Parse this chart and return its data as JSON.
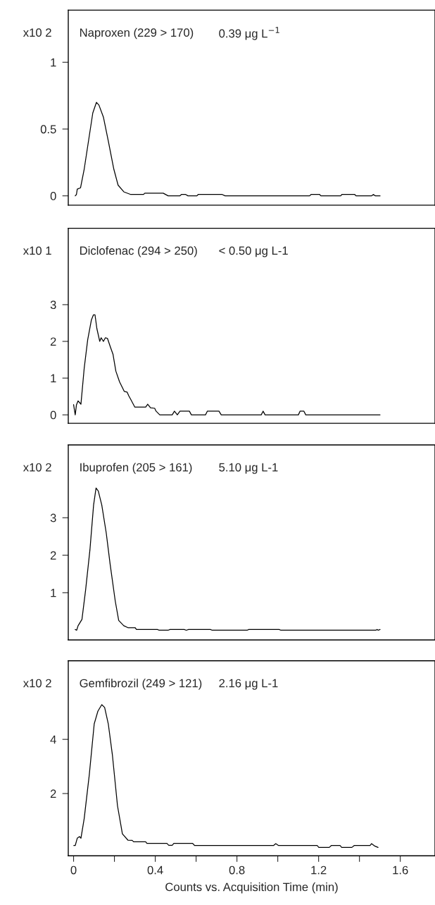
{
  "chart_data": [
    {
      "type": "line",
      "title": "Naproxen (229 > 170)",
      "subtitle": "0.39 μg L$^{−1}$",
      "ylabel": "x10 2",
      "xlim": [
        -0.026,
        1.77
      ],
      "ylim": [
        -0.07,
        1.39
      ],
      "yticks": [
        0,
        0.5,
        1
      ],
      "tick_labels": "y",
      "series": [
        {
          "color": "#000000",
          "x": [
            0.008,
            0.014,
            0.018,
            0.034,
            0.052,
            0.073,
            0.094,
            0.112,
            0.124,
            0.146,
            0.17,
            0.197,
            0.218,
            0.246,
            0.28,
            0.342,
            0.349,
            0.439,
            0.463,
            0.52,
            0.528,
            0.549,
            0.56,
            0.604,
            0.61,
            0.666,
            0.728,
            0.742,
            1.156,
            1.163,
            1.205,
            1.211,
            1.308,
            1.314,
            1.377,
            1.383,
            1.459,
            1.468,
            1.478,
            1.501
          ],
          "values": [
            0,
            0.01,
            0.05,
            0.06,
            0.2,
            0.41,
            0.62,
            0.7,
            0.68,
            0.59,
            0.41,
            0.2,
            0.08,
            0.03,
            0.01,
            0.01,
            0.02,
            0.02,
            0,
            0,
            0.01,
            0.01,
            0,
            0,
            0.01,
            0.01,
            0.01,
            0,
            0,
            0.01,
            0.01,
            0,
            0,
            0.01,
            0.01,
            0,
            0,
            0.01,
            0,
            0
          ]
        }
      ]
    },
    {
      "type": "line",
      "title": "Diclofenac (294 > 250)",
      "subtitle": "< 0.50 μg L-1",
      "ylabel": "x10 1",
      "xlim": [
        -0.026,
        1.77
      ],
      "ylim": [
        -0.23,
        5.08
      ],
      "yticks": [
        0,
        1,
        2,
        3
      ],
      "tick_labels": "y",
      "series": [
        {
          "color": "#000000",
          "x": [
            0,
            0.008,
            0.014,
            0.022,
            0.036,
            0.052,
            0.069,
            0.087,
            0.097,
            0.105,
            0.114,
            0.128,
            0.135,
            0.146,
            0.156,
            0.166,
            0.18,
            0.193,
            0.207,
            0.225,
            0.248,
            0.262,
            0.27,
            0.28,
            0.3,
            0.353,
            0.363,
            0.377,
            0.397,
            0.404,
            0.422,
            0.483,
            0.494,
            0.508,
            0.521,
            0.567,
            0.577,
            0.646,
            0.655,
            0.712,
            0.723,
            0.919,
            0.928,
            0.938,
            1.101,
            1.109,
            1.128,
            1.137,
            1.501
          ],
          "values": [
            0.28,
            0,
            0.27,
            0.38,
            0.29,
            1.27,
            2.04,
            2.58,
            2.72,
            2.72,
            2.35,
            2.0,
            2.1,
            2.0,
            2.1,
            2.08,
            1.85,
            1.65,
            1.19,
            0.9,
            0.64,
            0.62,
            0.52,
            0.42,
            0.21,
            0.21,
            0.29,
            0.19,
            0.18,
            0.1,
            0,
            0,
            0.1,
            0,
            0.1,
            0.1,
            0,
            0,
            0.1,
            0.1,
            0,
            0,
            0.1,
            0,
            0,
            0.1,
            0.1,
            0,
            0
          ]
        }
      ]
    },
    {
      "type": "line",
      "title": "Ibuprofen (205 > 161)",
      "subtitle": "5.10 μg L-1",
      "ylabel": "x10 2",
      "xlim": [
        -0.026,
        1.77
      ],
      "ylim": [
        -0.26,
        4.94
      ],
      "yticks": [
        1,
        2,
        3
      ],
      "tick_labels": "y",
      "series": [
        {
          "color": "#000000",
          "x": [
            0.008,
            0.015,
            0.022,
            0.041,
            0.059,
            0.08,
            0.098,
            0.11,
            0.121,
            0.138,
            0.16,
            0.179,
            0.204,
            0.221,
            0.246,
            0.266,
            0.301,
            0.308,
            0.411,
            0.419,
            0.463,
            0.472,
            0.542,
            0.552,
            0.563,
            0.67,
            0.679,
            0.85,
            0.858,
            1.007,
            1.015,
            1.48,
            1.487,
            1.492,
            1.501
          ],
          "values": [
            0.02,
            0,
            0.12,
            0.29,
            1.08,
            2.14,
            3.34,
            3.79,
            3.71,
            3.34,
            2.59,
            1.76,
            0.78,
            0.26,
            0.12,
            0.07,
            0.07,
            0.02,
            0.02,
            0,
            0,
            0.02,
            0.02,
            0,
            0.02,
            0.02,
            0,
            0,
            0.02,
            0.02,
            0,
            0,
            0.02,
            0,
            0.02
          ]
        }
      ]
    },
    {
      "type": "line",
      "title": "Gemfibrozil (249 > 121)",
      "subtitle": "2.16 μg L-1",
      "ylabel": "x10 2",
      "xlabel": "Counts vs. Acquisition Time (min)",
      "xlim": [
        -0.026,
        1.77
      ],
      "ylim": [
        -0.3,
        6.9
      ],
      "yticks": [
        2,
        4
      ],
      "xticks": [
        0,
        {
          "value": 0.2,
          "label": null
        },
        0.4,
        {
          "value": 0.6,
          "label": null
        },
        0.8,
        {
          "value": 1.0,
          "label": null
        },
        1.2,
        {
          "value": 1.4,
          "label": null
        },
        1.6
      ],
      "series": [
        {
          "color": "#000000",
          "x": [
            0.001,
            0.008,
            0.018,
            0.029,
            0.036,
            0.052,
            0.077,
            0.101,
            0.119,
            0.138,
            0.152,
            0.17,
            0.19,
            0.215,
            0.232,
            0.239,
            0.266,
            0.287,
            0.294,
            0.353,
            0.359,
            0.457,
            0.466,
            0.483,
            0.491,
            0.583,
            0.593,
            0.979,
            0.99,
            1.004,
            1.193,
            1.201,
            1.252,
            1.262,
            1.305,
            1.313,
            1.363,
            1.374,
            1.452,
            1.459,
            1.473,
            1.491
          ],
          "values": [
            0.08,
            0.08,
            0.35,
            0.41,
            0.35,
            1.08,
            2.7,
            4.57,
            5.04,
            5.28,
            5.18,
            4.57,
            3.43,
            1.55,
            0.82,
            0.51,
            0.28,
            0.27,
            0.22,
            0.22,
            0.16,
            0.16,
            0.09,
            0.09,
            0.16,
            0.16,
            0.08,
            0.08,
            0.15,
            0.08,
            0.08,
            0.01,
            0.01,
            0.08,
            0.08,
            0.01,
            0.01,
            0.08,
            0.08,
            0.15,
            0.07,
            0.01
          ]
        }
      ]
    }
  ]
}
